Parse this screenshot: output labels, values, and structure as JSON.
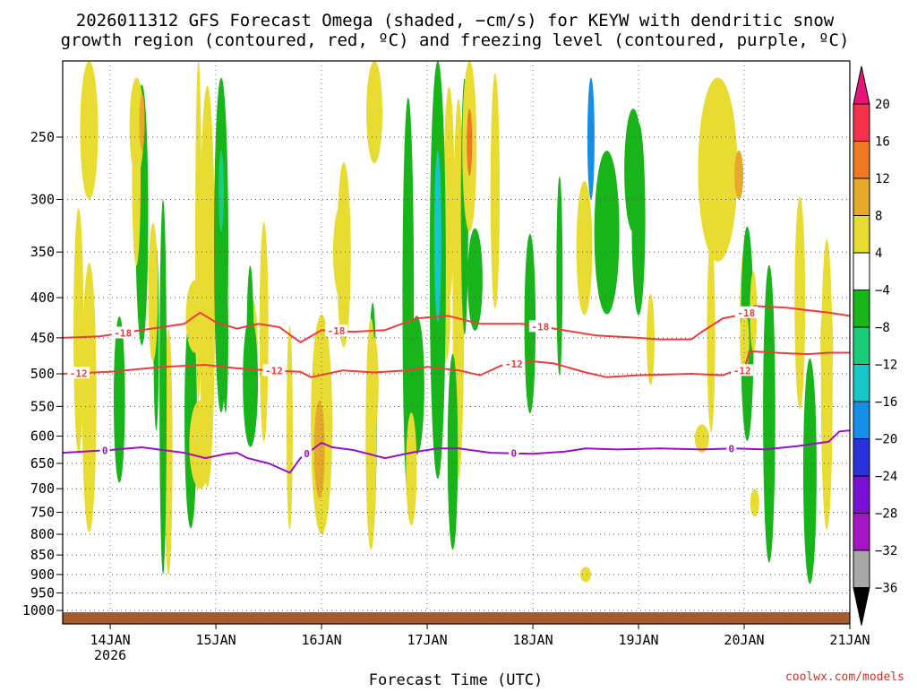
{
  "title_line1": "2026011312 GFS Forecast Omega (shaded, −cm/s) for KEYW with dendritic snow",
  "title_line2": "growth region (contoured, red, ºC) and freezing level (contoured, purple, ºC)",
  "credit": "coolwx.com/models",
  "chart_data": {
    "type": "heatmap",
    "title": "2026011312 GFS Forecast Omega (shaded, −cm/s) for KEYW with dendritic snow growth region (contoured, red, ºC) and freezing level (contoured, purple, ºC)",
    "xlabel": "Forecast Time (UTC)",
    "ylabel": "",
    "y_scale": "log (pressure, hPa, decreasing upward)",
    "ylim": [
      1050,
      200
    ],
    "xlim": [
      13.55,
      21.0
    ],
    "x_ticks": [
      {
        "value": 14,
        "label": "14JAN",
        "sublabel": "2026"
      },
      {
        "value": 15,
        "label": "15JAN"
      },
      {
        "value": 16,
        "label": "16JAN"
      },
      {
        "value": 17,
        "label": "17JAN"
      },
      {
        "value": 18,
        "label": "18JAN"
      },
      {
        "value": 19,
        "label": "19JAN"
      },
      {
        "value": 20,
        "label": "20JAN"
      },
      {
        "value": 21,
        "label": "21JAN"
      }
    ],
    "y_ticks": [
      250,
      300,
      350,
      400,
      450,
      500,
      550,
      600,
      650,
      700,
      750,
      800,
      850,
      900,
      950,
      1000
    ],
    "grid": true,
    "colorbar": {
      "labels": [
        "20",
        "16",
        "12",
        "8",
        "4",
        "−4",
        "−8",
        "−12",
        "−16",
        "−20",
        "−24",
        "−28",
        "−32",
        "−36"
      ],
      "colors": [
        "#f4324e",
        "#ef7823",
        "#e7a92a",
        "#e8dc32",
        "#ffffff",
        "#17b41a",
        "#1dcc7a",
        "#17c6c6",
        "#178ee6",
        "#2a32dc",
        "#7a10d6",
        "#a714c4",
        "#a8a8a8"
      ],
      "top_color": "#e8147a",
      "bottom_color": "#000000"
    },
    "ground_color": "#a55a2e",
    "contours": [
      {
        "label": "-18",
        "color": "#ef3b3b",
        "points": [
          [
            13.55,
            450
          ],
          [
            13.9,
            448
          ],
          [
            14.3,
            440
          ],
          [
            14.7,
            432
          ],
          [
            14.85,
            418
          ],
          [
            15.0,
            430
          ],
          [
            15.2,
            438
          ],
          [
            15.4,
            432
          ],
          [
            15.6,
            436
          ],
          [
            15.8,
            456
          ],
          [
            16.0,
            440
          ],
          [
            16.3,
            442
          ],
          [
            16.6,
            440
          ],
          [
            16.9,
            425
          ],
          [
            17.2,
            422
          ],
          [
            17.5,
            432
          ],
          [
            17.9,
            432
          ],
          [
            18.2,
            438
          ],
          [
            18.6,
            447
          ],
          [
            19.0,
            450
          ],
          [
            19.2,
            452
          ],
          [
            19.5,
            452
          ],
          [
            19.6,
            442
          ],
          [
            19.8,
            425
          ],
          [
            20.0,
            420
          ],
          [
            20.1,
            410
          ],
          [
            20.4,
            412
          ],
          [
            20.8,
            418
          ],
          [
            21.0,
            422
          ]
        ],
        "label_x": [
          14.12,
          16.14,
          18.07,
          20.02
        ]
      },
      {
        "label": "-12",
        "color": "#ef3b3b",
        "points": [
          [
            13.55,
            500
          ],
          [
            14.0,
            497
          ],
          [
            14.5,
            490
          ],
          [
            14.9,
            487
          ],
          [
            15.2,
            492
          ],
          [
            15.5,
            495
          ],
          [
            15.8,
            497
          ],
          [
            15.9,
            505
          ],
          [
            16.2,
            495
          ],
          [
            16.5,
            498
          ],
          [
            16.8,
            495
          ],
          [
            17.0,
            490
          ],
          [
            17.3,
            495
          ],
          [
            17.5,
            502
          ],
          [
            17.7,
            488
          ],
          [
            18.0,
            482
          ],
          [
            18.2,
            485
          ],
          [
            18.5,
            498
          ],
          [
            18.7,
            505
          ],
          [
            19.0,
            502
          ],
          [
            19.5,
            500
          ],
          [
            19.8,
            502
          ],
          [
            19.9,
            496
          ],
          [
            20.0,
            495
          ],
          [
            20.05,
            468
          ],
          [
            20.3,
            470
          ],
          [
            20.6,
            472
          ],
          [
            20.8,
            470
          ],
          [
            21.0,
            470
          ]
        ],
        "label_x": [
          13.7,
          15.55,
          17.82,
          19.98
        ]
      },
      {
        "label": "0",
        "color": "#9a10c6",
        "points": [
          [
            13.55,
            630
          ],
          [
            14.0,
            625
          ],
          [
            14.3,
            620
          ],
          [
            14.7,
            630
          ],
          [
            14.9,
            640
          ],
          [
            15.1,
            632
          ],
          [
            15.2,
            630
          ],
          [
            15.3,
            640
          ],
          [
            15.5,
            650
          ],
          [
            15.7,
            668
          ],
          [
            15.8,
            640
          ],
          [
            16.0,
            612
          ],
          [
            16.1,
            620
          ],
          [
            16.3,
            625
          ],
          [
            16.6,
            640
          ],
          [
            16.9,
            628
          ],
          [
            17.1,
            622
          ],
          [
            17.3,
            622
          ],
          [
            17.6,
            630
          ],
          [
            18.0,
            632
          ],
          [
            18.3,
            628
          ],
          [
            18.5,
            622
          ],
          [
            18.8,
            624
          ],
          [
            19.2,
            622
          ],
          [
            19.6,
            624
          ],
          [
            19.9,
            622
          ],
          [
            20.2,
            624
          ],
          [
            20.5,
            618
          ],
          [
            20.8,
            610
          ],
          [
            20.9,
            592
          ],
          [
            21.0,
            590
          ]
        ],
        "label_x": [
          13.95,
          15.86,
          17.82,
          19.88
        ]
      }
    ],
    "shaded_regions_approx": [
      {
        "range": "4 to 8",
        "x": [
          13.7,
          13.9
        ],
        "p": [
          200,
          300
        ]
      },
      {
        "range": "4 to 8",
        "x": [
          15.75,
          16.15
        ],
        "p": [
          480,
          790
        ]
      },
      {
        "range": "8 to 12",
        "x": [
          15.8,
          16.05
        ],
        "p": [
          540,
          730
        ]
      },
      {
        "range": "-4 to -8",
        "x": [
          15.0,
          15.1
        ],
        "p": [
          200,
          560
        ]
      },
      {
        "range": "-4 to -8",
        "x": [
          17.0,
          17.2
        ],
        "p": [
          200,
          670
        ]
      },
      {
        "range": "-8 to -12",
        "x": [
          17.05,
          17.15
        ],
        "p": [
          260,
          420
        ]
      },
      {
        "range": "-4 to -8",
        "x": [
          18.6,
          18.85
        ],
        "p": [
          260,
          420
        ]
      },
      {
        "range": "4 to 8",
        "x": [
          19.4,
          20.2
        ],
        "p": [
          200,
          350
        ]
      },
      {
        "range": "8 to 12",
        "x": [
          19.9,
          20.0
        ],
        "p": [
          260,
          300
        ]
      }
    ]
  }
}
